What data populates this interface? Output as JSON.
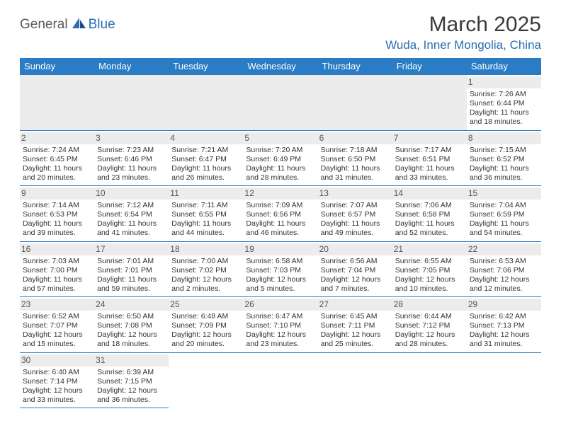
{
  "logo": {
    "part1": "General",
    "part2": "Blue"
  },
  "title": "March 2025",
  "location": "Wuda, Inner Mongolia, China",
  "colors": {
    "header_bg": "#2a7cc4",
    "header_text": "#ffffff",
    "border": "#2a7cc4",
    "daynum_bg": "#ececec",
    "brand_gray": "#5b5b5b",
    "brand_blue": "#2a6db3"
  },
  "weekdays": [
    "Sunday",
    "Monday",
    "Tuesday",
    "Wednesday",
    "Thursday",
    "Friday",
    "Saturday"
  ],
  "weeks": [
    [
      null,
      null,
      null,
      null,
      null,
      null,
      {
        "d": "1",
        "sr": "Sunrise: 7:26 AM",
        "ss": "Sunset: 6:44 PM",
        "dl1": "Daylight: 11 hours",
        "dl2": "and 18 minutes."
      }
    ],
    [
      {
        "d": "2",
        "sr": "Sunrise: 7:24 AM",
        "ss": "Sunset: 6:45 PM",
        "dl1": "Daylight: 11 hours",
        "dl2": "and 20 minutes."
      },
      {
        "d": "3",
        "sr": "Sunrise: 7:23 AM",
        "ss": "Sunset: 6:46 PM",
        "dl1": "Daylight: 11 hours",
        "dl2": "and 23 minutes."
      },
      {
        "d": "4",
        "sr": "Sunrise: 7:21 AM",
        "ss": "Sunset: 6:47 PM",
        "dl1": "Daylight: 11 hours",
        "dl2": "and 26 minutes."
      },
      {
        "d": "5",
        "sr": "Sunrise: 7:20 AM",
        "ss": "Sunset: 6:49 PM",
        "dl1": "Daylight: 11 hours",
        "dl2": "and 28 minutes."
      },
      {
        "d": "6",
        "sr": "Sunrise: 7:18 AM",
        "ss": "Sunset: 6:50 PM",
        "dl1": "Daylight: 11 hours",
        "dl2": "and 31 minutes."
      },
      {
        "d": "7",
        "sr": "Sunrise: 7:17 AM",
        "ss": "Sunset: 6:51 PM",
        "dl1": "Daylight: 11 hours",
        "dl2": "and 33 minutes."
      },
      {
        "d": "8",
        "sr": "Sunrise: 7:15 AM",
        "ss": "Sunset: 6:52 PM",
        "dl1": "Daylight: 11 hours",
        "dl2": "and 36 minutes."
      }
    ],
    [
      {
        "d": "9",
        "sr": "Sunrise: 7:14 AM",
        "ss": "Sunset: 6:53 PM",
        "dl1": "Daylight: 11 hours",
        "dl2": "and 39 minutes."
      },
      {
        "d": "10",
        "sr": "Sunrise: 7:12 AM",
        "ss": "Sunset: 6:54 PM",
        "dl1": "Daylight: 11 hours",
        "dl2": "and 41 minutes."
      },
      {
        "d": "11",
        "sr": "Sunrise: 7:11 AM",
        "ss": "Sunset: 6:55 PM",
        "dl1": "Daylight: 11 hours",
        "dl2": "and 44 minutes."
      },
      {
        "d": "12",
        "sr": "Sunrise: 7:09 AM",
        "ss": "Sunset: 6:56 PM",
        "dl1": "Daylight: 11 hours",
        "dl2": "and 46 minutes."
      },
      {
        "d": "13",
        "sr": "Sunrise: 7:07 AM",
        "ss": "Sunset: 6:57 PM",
        "dl1": "Daylight: 11 hours",
        "dl2": "and 49 minutes."
      },
      {
        "d": "14",
        "sr": "Sunrise: 7:06 AM",
        "ss": "Sunset: 6:58 PM",
        "dl1": "Daylight: 11 hours",
        "dl2": "and 52 minutes."
      },
      {
        "d": "15",
        "sr": "Sunrise: 7:04 AM",
        "ss": "Sunset: 6:59 PM",
        "dl1": "Daylight: 11 hours",
        "dl2": "and 54 minutes."
      }
    ],
    [
      {
        "d": "16",
        "sr": "Sunrise: 7:03 AM",
        "ss": "Sunset: 7:00 PM",
        "dl1": "Daylight: 11 hours",
        "dl2": "and 57 minutes."
      },
      {
        "d": "17",
        "sr": "Sunrise: 7:01 AM",
        "ss": "Sunset: 7:01 PM",
        "dl1": "Daylight: 11 hours",
        "dl2": "and 59 minutes."
      },
      {
        "d": "18",
        "sr": "Sunrise: 7:00 AM",
        "ss": "Sunset: 7:02 PM",
        "dl1": "Daylight: 12 hours",
        "dl2": "and 2 minutes."
      },
      {
        "d": "19",
        "sr": "Sunrise: 6:58 AM",
        "ss": "Sunset: 7:03 PM",
        "dl1": "Daylight: 12 hours",
        "dl2": "and 5 minutes."
      },
      {
        "d": "20",
        "sr": "Sunrise: 6:56 AM",
        "ss": "Sunset: 7:04 PM",
        "dl1": "Daylight: 12 hours",
        "dl2": "and 7 minutes."
      },
      {
        "d": "21",
        "sr": "Sunrise: 6:55 AM",
        "ss": "Sunset: 7:05 PM",
        "dl1": "Daylight: 12 hours",
        "dl2": "and 10 minutes."
      },
      {
        "d": "22",
        "sr": "Sunrise: 6:53 AM",
        "ss": "Sunset: 7:06 PM",
        "dl1": "Daylight: 12 hours",
        "dl2": "and 12 minutes."
      }
    ],
    [
      {
        "d": "23",
        "sr": "Sunrise: 6:52 AM",
        "ss": "Sunset: 7:07 PM",
        "dl1": "Daylight: 12 hours",
        "dl2": "and 15 minutes."
      },
      {
        "d": "24",
        "sr": "Sunrise: 6:50 AM",
        "ss": "Sunset: 7:08 PM",
        "dl1": "Daylight: 12 hours",
        "dl2": "and 18 minutes."
      },
      {
        "d": "25",
        "sr": "Sunrise: 6:48 AM",
        "ss": "Sunset: 7:09 PM",
        "dl1": "Daylight: 12 hours",
        "dl2": "and 20 minutes."
      },
      {
        "d": "26",
        "sr": "Sunrise: 6:47 AM",
        "ss": "Sunset: 7:10 PM",
        "dl1": "Daylight: 12 hours",
        "dl2": "and 23 minutes."
      },
      {
        "d": "27",
        "sr": "Sunrise: 6:45 AM",
        "ss": "Sunset: 7:11 PM",
        "dl1": "Daylight: 12 hours",
        "dl2": "and 25 minutes."
      },
      {
        "d": "28",
        "sr": "Sunrise: 6:44 AM",
        "ss": "Sunset: 7:12 PM",
        "dl1": "Daylight: 12 hours",
        "dl2": "and 28 minutes."
      },
      {
        "d": "29",
        "sr": "Sunrise: 6:42 AM",
        "ss": "Sunset: 7:13 PM",
        "dl1": "Daylight: 12 hours",
        "dl2": "and 31 minutes."
      }
    ],
    [
      {
        "d": "30",
        "sr": "Sunrise: 6:40 AM",
        "ss": "Sunset: 7:14 PM",
        "dl1": "Daylight: 12 hours",
        "dl2": "and 33 minutes."
      },
      {
        "d": "31",
        "sr": "Sunrise: 6:39 AM",
        "ss": "Sunset: 7:15 PM",
        "dl1": "Daylight: 12 hours",
        "dl2": "and 36 minutes."
      },
      null,
      null,
      null,
      null,
      null
    ]
  ]
}
